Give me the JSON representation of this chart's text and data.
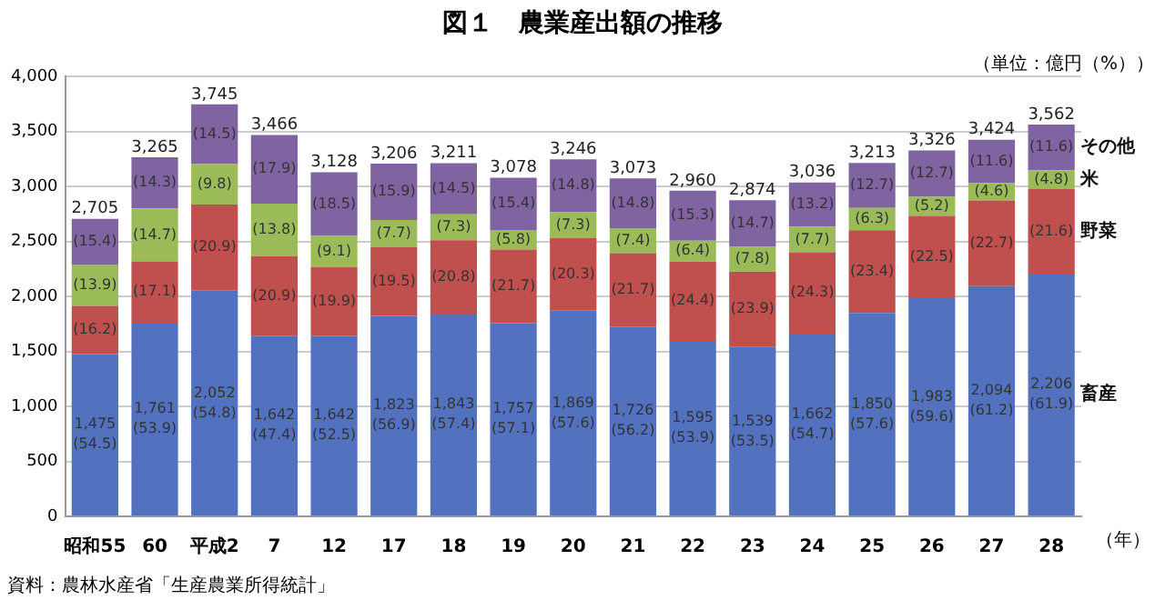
{
  "chart_data": {
    "type": "bar",
    "stacked": true,
    "title": "図１　農業産出額の推移",
    "xlabel": "（年）",
    "annotations": [
      "（単位：億円（%））",
      "資料：農林水産省「生産農業所得統計」",
      {
        "text": "(16.2)",
        "x": "昭和55",
        "y": 1913
      },
      {
        "text": "(13.9)",
        "x": "昭和55",
        "y": 2289
      },
      {
        "text": "(15.4)",
        "x": "昭和55",
        "y": 2705
      },
      {
        "text": "(17.1)",
        "x": "60",
        "y": 2319
      },
      {
        "text": "(14.7)",
        "x": "60",
        "y": 2799
      },
      {
        "text": "(14.3)",
        "x": "60",
        "y": 3265
      },
      {
        "text": "(20.9)",
        "x": "平成2",
        "y": 2835
      },
      {
        "text": "(9.8)",
        "x": "平成2",
        "y": 3202
      },
      {
        "text": "(14.5)",
        "x": "平成2",
        "y": 3745
      },
      {
        "text": "(20.9)",
        "x": "7",
        "y": 2366
      },
      {
        "text": "(13.8)",
        "x": "7",
        "y": 2844
      },
      {
        "text": "(17.9)",
        "x": "7",
        "y": 3466
      },
      {
        "text": "(19.9)",
        "x": "12",
        "y": 2264
      },
      {
        "text": "(9.1)",
        "x": "12",
        "y": 2549
      },
      {
        "text": "(18.5)",
        "x": "12",
        "y": 3128
      },
      {
        "text": "(19.5)",
        "x": "17",
        "y": 2448
      },
      {
        "text": "(7.7)",
        "x": "17",
        "y": 2695
      },
      {
        "text": "(15.9)",
        "x": "17",
        "y": 3206
      },
      {
        "text": "(20.8)",
        "x": "18",
        "y": 2511
      },
      {
        "text": "(7.3)",
        "x": "18",
        "y": 2745
      },
      {
        "text": "(14.5)",
        "x": "18",
        "y": 3211
      },
      {
        "text": "(21.7)",
        "x": "19",
        "y": 2425
      },
      {
        "text": "(5.8)",
        "x": "19",
        "y": 2604
      },
      {
        "text": "(15.4)",
        "x": "19",
        "y": 3078
      },
      {
        "text": "(20.3)",
        "x": "20",
        "y": 2528
      },
      {
        "text": "(7.3)",
        "x": "20",
        "y": 2765
      },
      {
        "text": "(14.8)",
        "x": "20",
        "y": 3246
      },
      {
        "text": "(21.7)",
        "x": "21",
        "y": 2393
      },
      {
        "text": "(7.4)",
        "x": "21",
        "y": 2620
      },
      {
        "text": "(14.8)",
        "x": "21",
        "y": 3073
      },
      {
        "text": "(24.4)",
        "x": "22",
        "y": 2317
      },
      {
        "text": "(6.4)",
        "x": "22",
        "y": 2506
      },
      {
        "text": "(15.3)",
        "x": "22",
        "y": 2960
      },
      {
        "text": "(23.9)",
        "x": "23",
        "y": 2226
      },
      {
        "text": "(7.8)",
        "x": "23",
        "y": 2450
      },
      {
        "text": "(14.7)",
        "x": "23",
        "y": 2874
      },
      {
        "text": "(24.3)",
        "x": "24",
        "y": 2400
      },
      {
        "text": "(7.7)",
        "x": "24",
        "y": 2634
      },
      {
        "text": "(13.2)",
        "x": "24",
        "y": 3036
      },
      {
        "text": "(23.4)",
        "x": "25",
        "y": 2602
      },
      {
        "text": "(6.3)",
        "x": "25",
        "y": 2804
      },
      {
        "text": "(12.7)",
        "x": "25",
        "y": 3213
      },
      {
        "text": "(22.5)",
        "x": "26",
        "y": 2731
      },
      {
        "text": "(5.2)",
        "x": "26",
        "y": 2904
      },
      {
        "text": "(12.7)",
        "x": "26",
        "y": 3326
      },
      {
        "text": "(22.7)",
        "x": "27",
        "y": 2871
      },
      {
        "text": "(4.6)",
        "x": "27",
        "y": 3029
      },
      {
        "text": "(11.6)",
        "x": "27",
        "y": 3424
      },
      {
        "text": "(21.6)",
        "x": "28",
        "y": 2975
      },
      {
        "text": "(4.8)",
        "x": "28",
        "y": 3146
      },
      {
        "text": "(11.6)",
        "x": "28",
        "y": 3562
      }
    ],
    "categories": [
      "昭和55",
      "60",
      "平成2",
      "7",
      "12",
      "17",
      "18",
      "19",
      "20",
      "21",
      "22",
      "23",
      "24",
      "25",
      "26",
      "27",
      "28"
    ],
    "ylim": [
      0,
      4000
    ],
    "yticks": [
      0,
      500,
      {
        "value": 1000,
        "label": "1,000"
      },
      {
        "value": 1500,
        "label": "1,500"
      },
      {
        "value": 2000,
        "label": "2,000"
      },
      {
        "value": 2500,
        "label": "2,500"
      },
      {
        "value": 3000,
        "label": "3,000"
      },
      {
        "value": 3500,
        "label": "3,500"
      },
      {
        "value": 4000,
        "label": "4,000"
      }
    ],
    "grid": "y",
    "legend": false,
    "series": [
      {
        "name": "畜産",
        "color": "#5272c0",
        "values": [
          1475,
          1761,
          2052,
          1642,
          1642,
          1823,
          1843,
          1757,
          1869,
          1726,
          1595,
          1539,
          1662,
          1850,
          1983,
          2094,
          2206
        ],
        "value_labels": [
          "1,475\n(54.5)",
          "1,761\n(53.9)",
          "2,052\n(54.8)",
          "1,642\n(47.4)",
          "1,642\n(52.5)",
          "1,823\n(56.9)",
          "1,843\n(57.4)",
          "1,757\n(57.1)",
          "1,869\n(57.6)",
          "1,726\n(56.2)",
          "1,595\n(53.9)",
          "1,539\n(53.5)",
          "1,662\n(54.7)",
          "1,850\n(57.6)",
          "1,983\n(59.6)",
          "2,094\n(61.2)",
          "2,206\n(61.9)"
        ]
      },
      {
        "name": "野菜",
        "color": "#c0504d",
        "values": [
          438,
          558,
          783,
          724,
          622,
          625,
          668,
          668,
          659,
          667,
          722,
          687,
          738,
          752,
          748,
          777,
          769
        ]
      },
      {
        "name": "米",
        "color": "#9bbb59",
        "values": [
          376,
          480,
          367,
          478,
          285,
          247,
          234,
          179,
          237,
          227,
          189,
          224,
          234,
          202,
          173,
          158,
          171
        ]
      },
      {
        "name": "その他",
        "color": "#8064a2",
        "values": [
          416,
          466,
          543,
          622,
          579,
          511,
          466,
          474,
          481,
          453,
          454,
          424,
          402,
          409,
          422,
          395,
          416
        ]
      }
    ],
    "totals": [
      "2,705",
      "3,265",
      "3,745",
      "3,466",
      "3,128",
      "3,206",
      "3,211",
      "3,078",
      "3,246",
      "3,073",
      "2,960",
      "2,874",
      "3,036",
      "3,213",
      "3,326",
      "3,424",
      "3,562"
    ]
  }
}
